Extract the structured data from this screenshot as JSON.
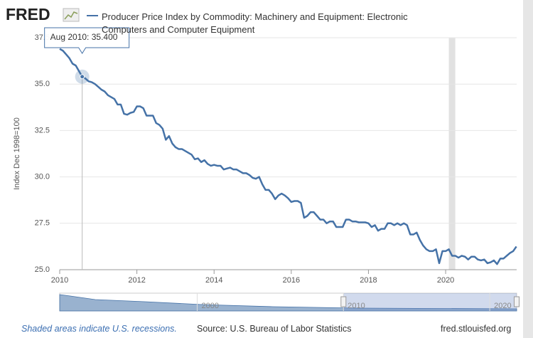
{
  "chart_data": {
    "type": "line",
    "logo": "FRED",
    "y_label": "Index Dec 1998=100",
    "note": "Shaded areas indicate U.S. recessions.",
    "source": "Source: U.S. Bureau of Labor Statistics",
    "site": "fred.stlouisfed.org",
    "xlim": [
      2010,
      2021.84
    ],
    "xticks": [
      2010,
      2012,
      2014,
      2016,
      2018,
      2020
    ],
    "ylim": [
      25,
      37.5
    ],
    "yticks": [
      {
        "value": 25,
        "label": "25.0"
      },
      27.5,
      {
        "value": 30,
        "label": "30.0"
      },
      32.5,
      {
        "value": 35,
        "label": "35.0"
      },
      37.5
    ],
    "grid": true,
    "recessions": [
      [
        2020.083,
        2020.25
      ]
    ],
    "tooltip": {
      "x": 2010.583,
      "date": "Aug 2010",
      "value_label": "35.400"
    },
    "navigator": {
      "xlim": [
        1990.6,
        2021.84
      ],
      "ticks": [
        2000,
        2010,
        2020
      ],
      "selection": [
        2010,
        2021.84
      ]
    },
    "x": [
      2010,
      2010.083,
      2010.167,
      2010.25,
      2010.333,
      2010.417,
      2010.5,
      2010.583,
      2010.667,
      2010.75,
      2010.833,
      2010.917,
      2011,
      2011.083,
      2011.167,
      2011.25,
      2011.333,
      2011.417,
      2011.5,
      2011.583,
      2011.667,
      2011.75,
      2011.833,
      2011.917,
      2012,
      2012.083,
      2012.167,
      2012.25,
      2012.333,
      2012.417,
      2012.5,
      2012.583,
      2012.667,
      2012.75,
      2012.833,
      2012.917,
      2013,
      2013.083,
      2013.167,
      2013.25,
      2013.333,
      2013.417,
      2013.5,
      2013.583,
      2013.667,
      2013.75,
      2013.833,
      2013.917,
      2014,
      2014.083,
      2014.167,
      2014.25,
      2014.333,
      2014.417,
      2014.5,
      2014.583,
      2014.667,
      2014.75,
      2014.833,
      2014.917,
      2015,
      2015.083,
      2015.167,
      2015.25,
      2015.333,
      2015.417,
      2015.5,
      2015.583,
      2015.667,
      2015.75,
      2015.833,
      2015.917,
      2016,
      2016.083,
      2016.167,
      2016.25,
      2016.333,
      2016.417,
      2016.5,
      2016.583,
      2016.667,
      2016.75,
      2016.833,
      2016.917,
      2017,
      2017.083,
      2017.167,
      2017.25,
      2017.333,
      2017.417,
      2017.5,
      2017.583,
      2017.667,
      2017.75,
      2017.833,
      2017.917,
      2018,
      2018.083,
      2018.167,
      2018.25,
      2018.333,
      2018.417,
      2018.5,
      2018.583,
      2018.667,
      2018.75,
      2018.833,
      2018.917,
      2019,
      2019.083,
      2019.167,
      2019.25,
      2019.333,
      2019.417,
      2019.5,
      2019.583,
      2019.667,
      2019.75,
      2019.833,
      2019.917,
      2020,
      2020.083,
      2020.167,
      2020.25,
      2020.333,
      2020.417,
      2020.5,
      2020.583,
      2020.667,
      2020.75,
      2020.833,
      2020.917,
      2021,
      2021.083,
      2021.167,
      2021.25,
      2021.333,
      2021.417,
      2021.5,
      2021.583,
      2021.667,
      2021.75,
      2021.833
    ],
    "series": [
      {
        "name": "Producer Price Index by Commodity: Machinery and Equipment: Electronic Computers and Computer Equipment",
        "color": "#4572a7",
        "values": [
          36.9,
          36.8,
          36.6,
          36.4,
          36.1,
          36.0,
          35.7,
          35.4,
          35.3,
          35.15,
          35.1,
          35.0,
          34.85,
          34.7,
          34.6,
          34.4,
          34.3,
          34.2,
          33.9,
          33.9,
          33.4,
          33.35,
          33.45,
          33.5,
          33.8,
          33.8,
          33.7,
          33.3,
          33.3,
          33.3,
          32.9,
          32.8,
          32.6,
          32.0,
          32.2,
          31.8,
          31.6,
          31.5,
          31.5,
          31.4,
          31.3,
          31.2,
          30.95,
          31.0,
          30.8,
          30.9,
          30.7,
          30.6,
          30.65,
          30.6,
          30.6,
          30.4,
          30.45,
          30.5,
          30.4,
          30.4,
          30.3,
          30.2,
          30.2,
          30.1,
          29.95,
          29.9,
          30.0,
          29.6,
          29.3,
          29.3,
          29.1,
          28.8,
          29.0,
          29.1,
          29.0,
          28.85,
          28.65,
          28.7,
          28.7,
          28.6,
          27.8,
          27.9,
          28.1,
          28.1,
          27.9,
          27.7,
          27.7,
          27.5,
          27.6,
          27.6,
          27.3,
          27.3,
          27.3,
          27.7,
          27.7,
          27.6,
          27.6,
          27.55,
          27.55,
          27.55,
          27.5,
          27.3,
          27.4,
          27.1,
          27.2,
          27.2,
          27.5,
          27.5,
          27.4,
          27.5,
          27.4,
          27.5,
          27.4,
          26.9,
          26.9,
          27.0,
          26.6,
          26.3,
          26.1,
          26.0,
          26.0,
          26.1,
          25.35,
          26.0,
          26.0,
          26.1,
          25.75,
          25.75,
          25.65,
          25.75,
          25.7,
          25.55,
          25.7,
          25.7,
          25.55,
          25.5,
          25.55,
          25.35,
          25.4,
          25.5,
          25.3,
          25.6,
          25.6,
          25.75,
          25.9,
          26.0,
          26.25
        ]
      }
    ]
  }
}
